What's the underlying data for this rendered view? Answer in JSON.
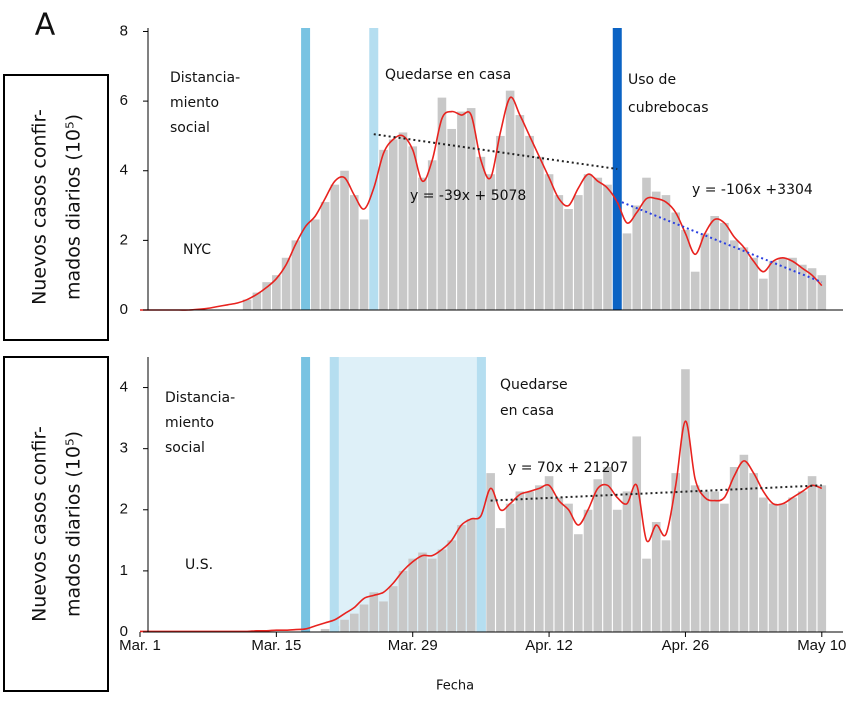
{
  "panel_label": "A",
  "chart_data": [
    {
      "type": "bar",
      "ylabel": [
        "Nuevos casos confir-",
        "mados diarios (10⁵)"
      ],
      "ylim": [
        0,
        8.1
      ],
      "yticks": [
        0,
        2,
        4,
        6,
        8
      ],
      "series": [
        {
          "kind": "bar",
          "color": "#c8c8c8",
          "values": [
            0,
            0,
            0,
            0,
            0,
            0,
            0,
            0,
            0,
            0,
            0,
            0.3,
            0.5,
            0.8,
            1.0,
            1.5,
            2.0,
            2.4,
            2.6,
            3.1,
            3.6,
            4.0,
            3.3,
            2.6,
            3.8,
            4.6,
            4.9,
            5.1,
            4.7,
            3.8,
            4.3,
            6.1,
            5.2,
            5.7,
            5.8,
            4.4,
            3.9,
            5.0,
            6.3,
            5.6,
            5.0,
            4.4,
            3.9,
            3.3,
            2.9,
            3.3,
            3.9,
            3.8,
            3.6,
            3.2,
            2.2,
            3.0,
            3.8,
            3.4,
            3.3,
            2.8,
            2.3,
            1.1,
            2.2,
            2.7,
            2.5,
            2.0,
            1.8,
            1.5,
            0.9,
            1.4,
            1.5,
            1.5,
            1.3,
            1.2,
            1.0
          ]
        },
        {
          "kind": "line",
          "color": "#e8231f",
          "values": [
            0,
            0,
            0,
            0,
            0,
            0,
            0.02,
            0.05,
            0.1,
            0.15,
            0.2,
            0.3,
            0.45,
            0.65,
            0.9,
            1.3,
            1.9,
            2.4,
            2.7,
            3.2,
            3.7,
            3.8,
            3.3,
            2.9,
            3.5,
            4.5,
            4.9,
            5.0,
            4.6,
            3.7,
            4.3,
            5.5,
            5.7,
            5.6,
            5.6,
            4.3,
            3.8,
            5.1,
            6.1,
            5.6,
            5.0,
            4.4,
            3.8,
            3.2,
            3.0,
            3.5,
            3.9,
            3.7,
            3.5,
            3.1,
            2.5,
            2.8,
            3.2,
            3.2,
            3.1,
            2.8,
            2.2,
            1.6,
            2.2,
            2.6,
            2.5,
            2.1,
            1.8,
            1.4,
            1.1,
            1.4,
            1.5,
            1.4,
            1.2,
            1.0,
            0.7
          ]
        }
      ],
      "trendlines": [
        {
          "x": [
            24,
            49
          ],
          "values": [
            5.05,
            4.05
          ],
          "color": "#222222"
        },
        {
          "x": [
            49,
            70
          ],
          "values": [
            3.15,
            0.8
          ],
          "color": "#2a3fe0"
        }
      ],
      "interventions": [
        {
          "day": 17,
          "color": "#79c3e2"
        },
        {
          "day": 24,
          "color": "#b5def0"
        },
        {
          "day": 49,
          "color": "#0b63c4"
        }
      ],
      "annotations": [
        [
          "Distancia-",
          "miento",
          "social"
        ],
        [
          "Quedarse en casa"
        ],
        [
          "Uso de",
          "cubrebocas"
        ],
        [
          "y = -39x + 5078"
        ],
        [
          "y = -106x +3304"
        ],
        [
          "NYC"
        ]
      ]
    },
    {
      "type": "bar",
      "ylabel": [
        "Nuevos casos confir-",
        "mados diarios (10⁵)"
      ],
      "xlabel": "Fecha",
      "categories": [
        "Mar. 1",
        null,
        null,
        null,
        null,
        null,
        null,
        null,
        null,
        null,
        null,
        null,
        null,
        null,
        "Mar. 15",
        null,
        null,
        null,
        null,
        null,
        null,
        null,
        null,
        null,
        null,
        null,
        null,
        null,
        "Mar. 29",
        null,
        null,
        null,
        null,
        null,
        null,
        null,
        null,
        null,
        null,
        null,
        null,
        null,
        "Apr. 12",
        null,
        null,
        null,
        null,
        null,
        null,
        null,
        null,
        null,
        null,
        null,
        null,
        null,
        "Apr. 26",
        null,
        null,
        null,
        null,
        null,
        null,
        null,
        null,
        null,
        null,
        null,
        null,
        null,
        "May 10"
      ],
      "ylim": [
        0,
        4.5
      ],
      "yticks": [
        0,
        1,
        2,
        3,
        4
      ],
      "series": [
        {
          "kind": "bar",
          "color": "#c8c8c8",
          "values": [
            0,
            0,
            0,
            0,
            0,
            0,
            0,
            0,
            0,
            0,
            0,
            0,
            0,
            0,
            0,
            0,
            0,
            0,
            0,
            0.05,
            0.1,
            0.2,
            0.3,
            0.45,
            0.65,
            0.5,
            0.75,
            1.0,
            1.2,
            1.3,
            1.2,
            1.35,
            1.5,
            1.75,
            1.85,
            1.9,
            2.6,
            1.7,
            2.1,
            2.3,
            2.3,
            2.4,
            2.55,
            2.2,
            2.1,
            1.6,
            2.0,
            2.5,
            2.7,
            2.0,
            2.3,
            3.2,
            1.2,
            1.8,
            1.5,
            2.6,
            4.3,
            2.4,
            2.3,
            2.3,
            2.1,
            2.7,
            2.9,
            2.6,
            2.2,
            2.1,
            2.1,
            2.2,
            2.3,
            2.55,
            2.4
          ]
        },
        {
          "kind": "line",
          "color": "#e8231f",
          "values": [
            0.01,
            0.01,
            0.01,
            0.01,
            0.01,
            0.01,
            0.01,
            0.01,
            0.01,
            0.01,
            0.01,
            0.01,
            0.02,
            0.02,
            0.03,
            0.03,
            0.04,
            0.05,
            0.1,
            0.15,
            0.2,
            0.3,
            0.4,
            0.55,
            0.6,
            0.65,
            0.8,
            1.0,
            1.15,
            1.25,
            1.25,
            1.35,
            1.5,
            1.75,
            1.85,
            1.9,
            2.35,
            2.0,
            2.1,
            2.25,
            2.3,
            2.35,
            2.4,
            2.15,
            2.0,
            1.75,
            2.0,
            2.35,
            2.4,
            2.2,
            2.1,
            2.4,
            1.5,
            1.75,
            1.6,
            2.4,
            3.45,
            2.5,
            2.2,
            2.15,
            2.2,
            2.55,
            2.8,
            2.6,
            2.3,
            2.1,
            2.1,
            2.2,
            2.3,
            2.4,
            2.35
          ]
        }
      ],
      "trendlines": [
        {
          "x": [
            36,
            70
          ],
          "values": [
            2.15,
            2.4
          ],
          "color": "#222222"
        }
      ],
      "interventions": [
        {
          "day": 17,
          "color": "#79c3e2"
        },
        {
          "day": [
            20,
            35
          ],
          "color": "#b5def0"
        }
      ],
      "annotations": [
        [
          "Distancia-",
          "miento",
          "social"
        ],
        [
          "Quedarse",
          "en casa"
        ],
        [
          "y = 70x + 21207"
        ],
        [
          "U.S."
        ]
      ]
    }
  ]
}
